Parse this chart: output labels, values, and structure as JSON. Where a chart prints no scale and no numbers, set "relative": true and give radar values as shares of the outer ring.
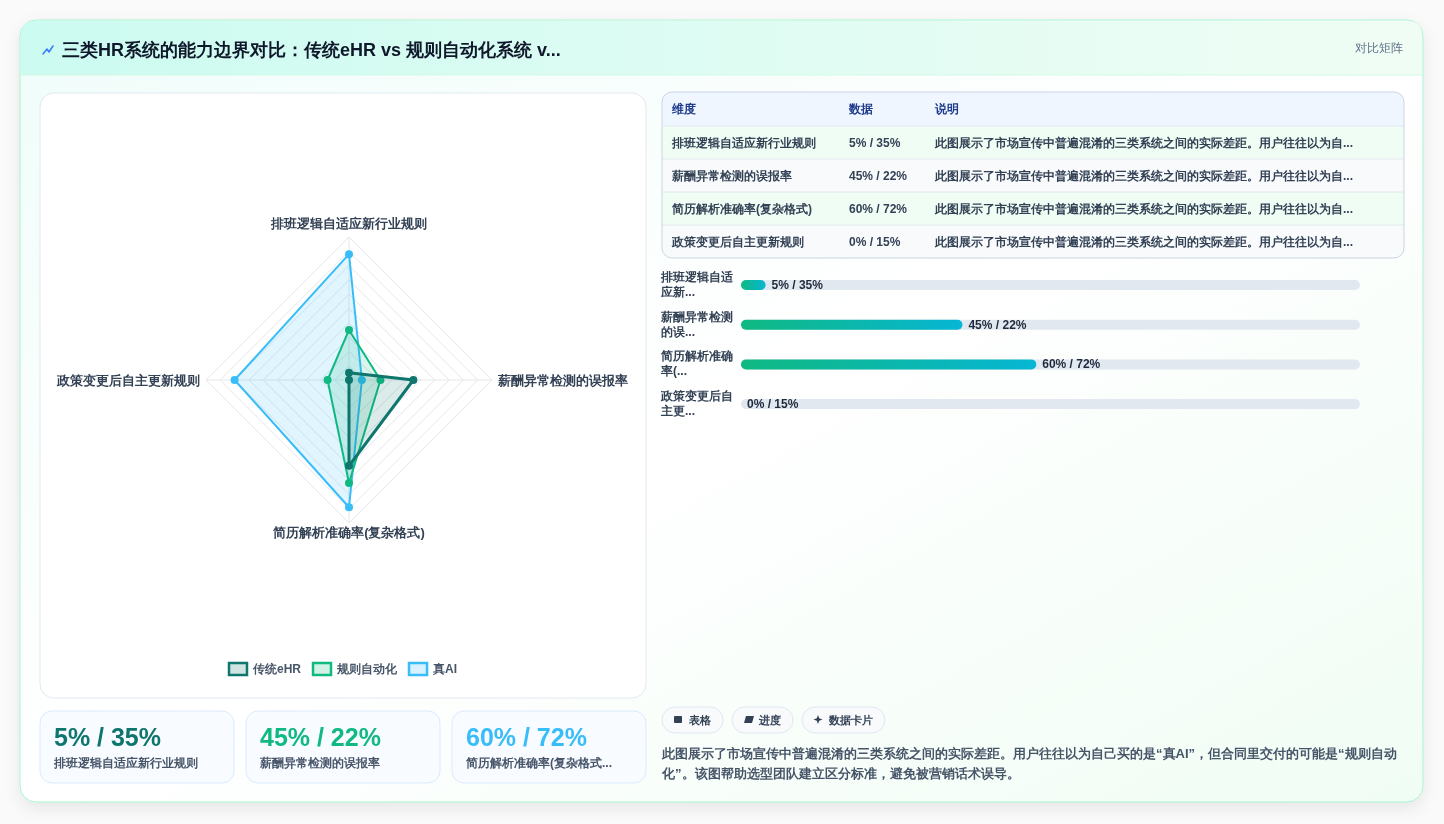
{
  "chart_data": [
    {
      "type": "radar",
      "title": "三类HR系统的能力边界对比：传统eHR vs 规则自动化系统 v...",
      "relative": true,
      "categories": [
        "排班逻辑自适应新行业规则",
        "薪酬异常检测的误报率",
        "简历解析准确率(复杂格式)",
        "政策变更后自主更新规则"
      ],
      "series": [
        {
          "name": "传统eHR",
          "color": "#0f766e",
          "values": [
            0.05,
            0.45,
            0.6,
            0
          ]
        },
        {
          "name": "规则自动化",
          "color": "#10b981",
          "values": [
            0.35,
            0.22,
            0.72,
            0.15
          ]
        },
        {
          "name": "真AI",
          "color": "#38bdf8",
          "values": [
            0.88,
            0.09,
            0.89,
            0.8
          ]
        }
      ],
      "grid": true,
      "legend": "bottom",
      "marker": "circle"
    },
    {
      "type": "other",
      "title": "对比矩阵",
      "categories": [
        "维度",
        "数据",
        "说明"
      ],
      "cell_labels": [
        [
          "排班逻辑自适应新行业规则",
          "5% / 35%",
          "此图展示了市场宣传中普遍混淆的三类系统之间的实际差距。用户往往以为自..."
        ],
        [
          "薪酬异常检测的误报率",
          "45% / 22%",
          "此图展示了市场宣传中普遍混淆的三类系统之间的实际差距。用户往往以为自..."
        ],
        [
          "简历解析准确率(复杂格式)",
          "60% / 72%",
          "此图展示了市场宣传中普遍混淆的三类系统之间的实际差距。用户往往以为自..."
        ],
        [
          "政策变更后自主更新规则",
          "0% / 15%",
          "此图展示了市场宣传中普遍混淆的三类系统之间的实际差距。用户往往以为自..."
        ]
      ]
    },
    {
      "type": "bar",
      "orientation": "horizontal",
      "categories": [
        "排班逻辑自适应新...",
        "薪酬异常检测的误...",
        "简历解析准确率(...",
        "政策变更后自主更..."
      ],
      "values": [
        5,
        45,
        60,
        0
      ],
      "value_labels": [
        "5% / 35%",
        "45% / 22%",
        "60% / 72%",
        "0% / 15%"
      ],
      "color": "#10b981",
      "grid": "y"
    },
    {
      "type": "other",
      "categories": [
        "排班逻辑自适应新行业规则",
        "薪酬异常检测的误报率",
        "简历解析准确率(复杂格式..."
      ],
      "value_labels": [
        "5% / 35%",
        "45% / 22%",
        "60% / 72%"
      ]
    },
    {
      "type": "other",
      "annotations": [
        "表格",
        "进度",
        "数据卡片",
        "此图展示了市场宣传中普遍混淆的三类系统之间的实际差距。用户往往以为自己买的是“真AI”，但合同里交付的可能是“规则自动化”。该图帮助选型团队建立区分标准，避免被营销话术误导。"
      ]
    }
  ]
}
